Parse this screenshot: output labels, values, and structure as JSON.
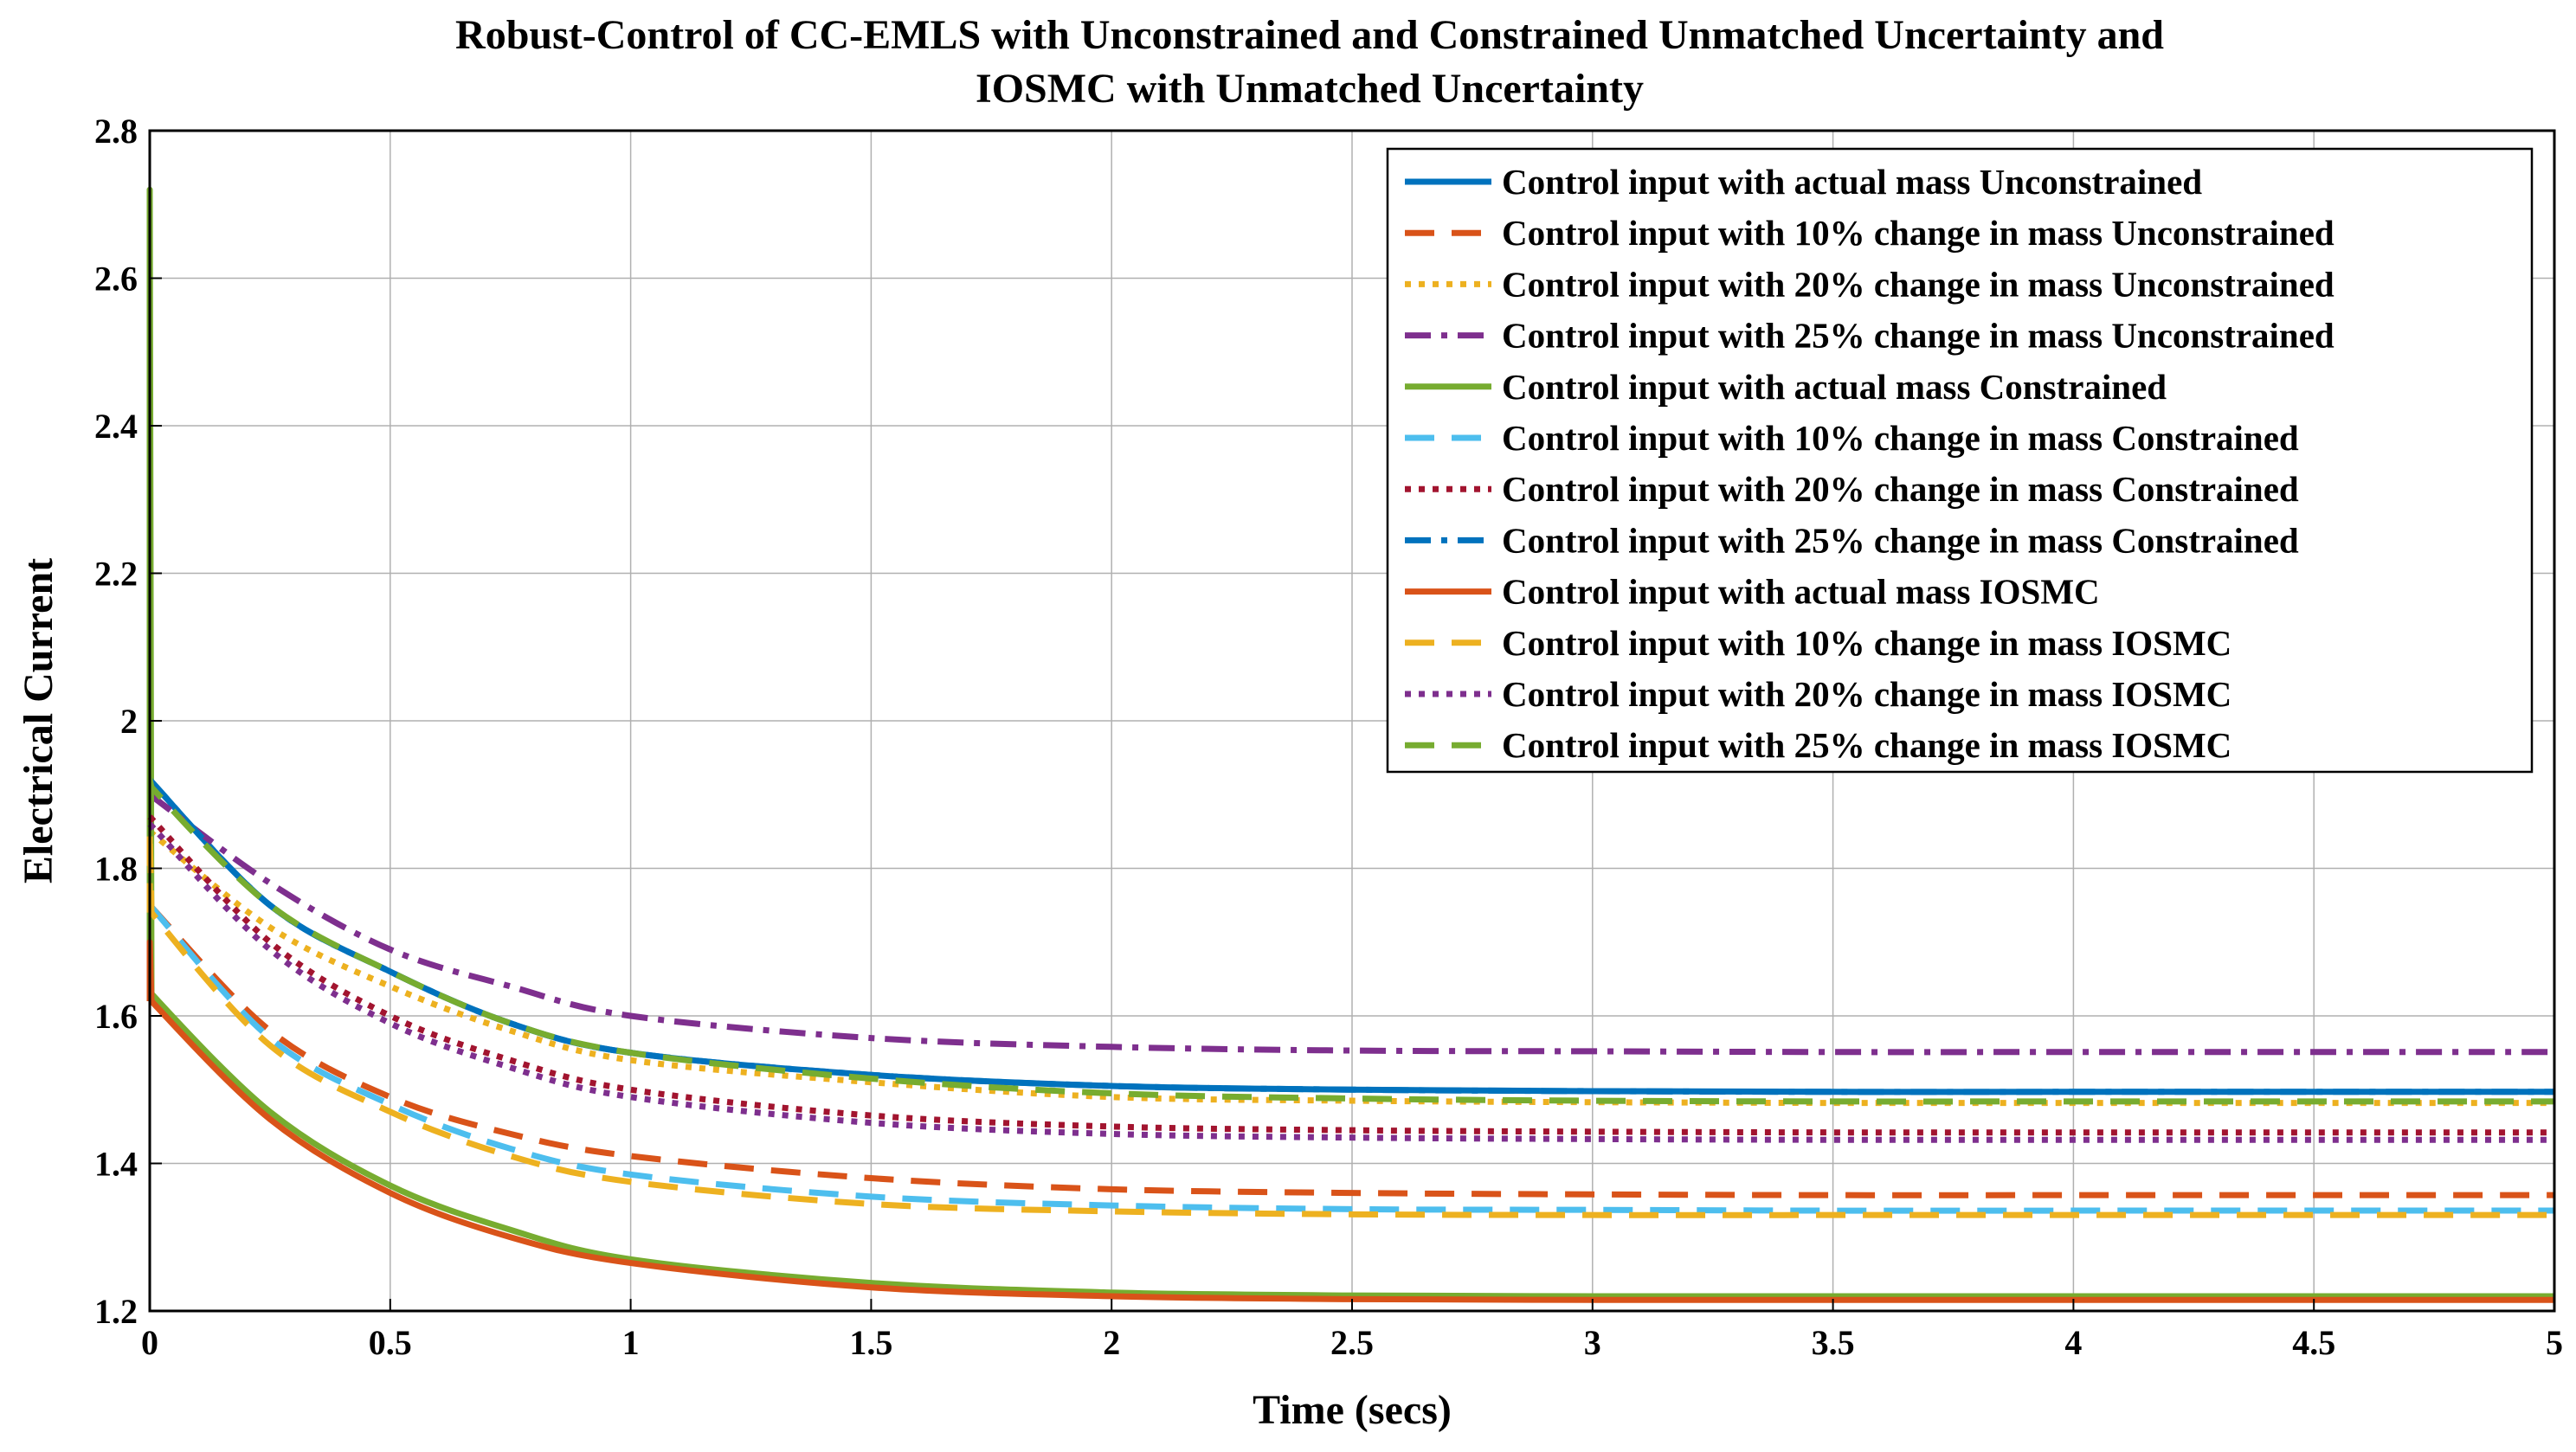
{
  "chart_data": {
    "type": "line",
    "title_lines": [
      "Robust-Control of CC-EMLS with Unconstrained and Constrained Unmatched Uncertainty and",
      "IOSMC with Unmatched Uncertainty"
    ],
    "xlabel": "Time (secs)",
    "ylabel": "Electrical Current",
    "xlim": [
      0,
      5
    ],
    "ylim": [
      1.2,
      2.8
    ],
    "xticks": [
      0,
      0.5,
      1,
      1.5,
      2,
      2.5,
      3,
      3.5,
      4,
      4.5,
      5
    ],
    "xtick_labels": [
      "0",
      "0.5",
      "1",
      "1.5",
      "2",
      "2.5",
      "3",
      "3.5",
      "4",
      "4.5",
      "5"
    ],
    "yticks": [
      1.2,
      1.4,
      1.6,
      1.8,
      2,
      2.2,
      2.4,
      2.6,
      2.8
    ],
    "ytick_labels": [
      "1.2",
      "1.4",
      "1.6",
      "1.8",
      "2",
      "2.2",
      "2.4",
      "2.6",
      "2.8"
    ],
    "grid": true,
    "legend_position": "top-right",
    "x": [
      0,
      0.25,
      0.5,
      0.75,
      1,
      1.5,
      2,
      2.5,
      3,
      3.5,
      4,
      4.5,
      5
    ],
    "series": [
      {
        "name": "Control input with actual mass Unconstrained",
        "color": "#0072BD",
        "style": "solid",
        "peak": 1.92,
        "values": [
          1.92,
          1.75,
          1.66,
          1.59,
          1.55,
          1.52,
          1.505,
          1.5,
          1.498,
          1.497,
          1.497,
          1.497,
          1.497
        ]
      },
      {
        "name": "Control input with 10% change in mass Unconstrained",
        "color": "#D95319",
        "style": "dash",
        "peak": 1.75,
        "values": [
          1.75,
          1.58,
          1.49,
          1.44,
          1.41,
          1.38,
          1.365,
          1.36,
          1.358,
          1.357,
          1.357,
          1.357,
          1.357
        ]
      },
      {
        "name": "Control input with 20% change in mass Unconstrained",
        "color": "#EDB120",
        "style": "dot",
        "peak": 1.85,
        "values": [
          1.85,
          1.72,
          1.64,
          1.58,
          1.54,
          1.51,
          1.49,
          1.485,
          1.483,
          1.482,
          1.482,
          1.482,
          1.482
        ]
      },
      {
        "name": "Control input with 25% change in mass Unconstrained",
        "color": "#7E2F8E",
        "style": "dashdot",
        "peak": 1.9,
        "values": [
          1.9,
          1.78,
          1.69,
          1.64,
          1.6,
          1.57,
          1.558,
          1.553,
          1.552,
          1.551,
          1.551,
          1.551,
          1.551
        ]
      },
      {
        "name": "Control input with actual mass Constrained",
        "color": "#77AC30",
        "style": "solid",
        "peak": 2.72,
        "values": [
          1.63,
          1.47,
          1.37,
          1.31,
          1.27,
          1.238,
          1.225,
          1.221,
          1.22,
          1.22,
          1.22,
          1.22,
          1.22
        ]
      },
      {
        "name": "Control input with 10% change in mass Constrained",
        "color": "#4DBEEE",
        "style": "dash",
        "peak": 1.75,
        "values": [
          1.75,
          1.57,
          1.48,
          1.42,
          1.385,
          1.355,
          1.343,
          1.338,
          1.337,
          1.336,
          1.336,
          1.336,
          1.336
        ]
      },
      {
        "name": "Control input with 20% change in mass Constrained",
        "color": "#A2142F",
        "style": "dot",
        "peak": 1.87,
        "values": [
          1.87,
          1.7,
          1.6,
          1.54,
          1.5,
          1.465,
          1.45,
          1.445,
          1.443,
          1.442,
          1.442,
          1.442,
          1.442
        ]
      },
      {
        "name": "Control input with 25% change in mass Constrained",
        "color": "#0072BD",
        "style": "dashdot",
        "peak": 1.92,
        "values": [
          1.92,
          1.75,
          1.66,
          1.59,
          1.55,
          1.52,
          1.505,
          1.5,
          1.498,
          1.497,
          1.497,
          1.497,
          1.497
        ]
      },
      {
        "name": "Control input with actual mass IOSMC",
        "color": "#D95319",
        "style": "solid",
        "peak": 1.7,
        "values": [
          1.62,
          1.46,
          1.36,
          1.3,
          1.265,
          1.232,
          1.22,
          1.216,
          1.215,
          1.215,
          1.215,
          1.215,
          1.215
        ]
      },
      {
        "name": "Control input with 10% change in mass IOSMC",
        "color": "#EDB120",
        "style": "dash",
        "peak": 1.85,
        "values": [
          1.74,
          1.56,
          1.47,
          1.41,
          1.375,
          1.345,
          1.335,
          1.331,
          1.33,
          1.33,
          1.33,
          1.33,
          1.33
        ]
      },
      {
        "name": "Control input with 20% change in mass IOSMC",
        "color": "#7E2F8E",
        "style": "dot",
        "peak": 1.86,
        "values": [
          1.86,
          1.69,
          1.59,
          1.53,
          1.49,
          1.455,
          1.44,
          1.435,
          1.433,
          1.432,
          1.432,
          1.432,
          1.432
        ]
      },
      {
        "name": "Control input with 25% change in mass IOSMC",
        "color": "#77AC30",
        "style": "dash",
        "peak": 1.92,
        "values": [
          1.91,
          1.75,
          1.66,
          1.59,
          1.55,
          1.515,
          1.495,
          1.488,
          1.485,
          1.484,
          1.484,
          1.484,
          1.484
        ]
      }
    ]
  }
}
